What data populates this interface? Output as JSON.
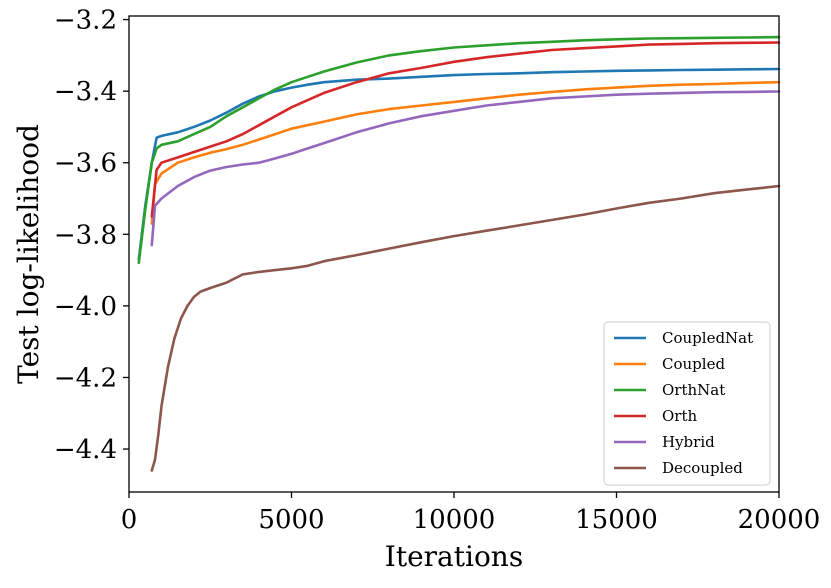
{
  "chart_data": {
    "type": "line",
    "title": "",
    "xlabel": "Iterations",
    "ylabel": "Test log-likelihood",
    "xlim": [
      0,
      20000
    ],
    "ylim": [
      -4.52,
      -3.19
    ],
    "xticks": [
      0,
      5000,
      10000,
      15000,
      20000
    ],
    "xtick_labels": [
      "0",
      "5000",
      "10000",
      "15000",
      "20000"
    ],
    "yticks": [
      -3.2,
      -3.4,
      -3.6,
      -3.8,
      -4.0,
      -4.2,
      -4.4
    ],
    "ytick_labels": [
      "−3.2",
      "−3.4",
      "−3.6",
      "−3.8",
      "−4.0",
      "−4.2",
      "−4.4"
    ],
    "grid": false,
    "legend_position": "lower-right",
    "series": [
      {
        "name": "CoupledNat",
        "color": "#1f77b4",
        "x": [
          300,
          500,
          700,
          850,
          1000,
          1500,
          2000,
          2500,
          3000,
          3500,
          4000,
          4500,
          5000,
          5500,
          6000,
          7000,
          8000,
          9000,
          10000,
          11000,
          12000,
          13000,
          14000,
          15000,
          16000,
          17000,
          18000,
          19000,
          20000
        ],
        "y": [
          -3.87,
          -3.72,
          -3.6,
          -3.53,
          -3.525,
          -3.515,
          -3.5,
          -3.482,
          -3.46,
          -3.435,
          -3.415,
          -3.4,
          -3.39,
          -3.382,
          -3.375,
          -3.368,
          -3.365,
          -3.36,
          -3.355,
          -3.352,
          -3.35,
          -3.347,
          -3.345,
          -3.343,
          -3.342,
          -3.341,
          -3.34,
          -3.339,
          -3.338
        ]
      },
      {
        "name": "Coupled",
        "color": "#ff7f0e",
        "x": [
          700,
          800,
          1000,
          1500,
          2000,
          2500,
          3000,
          3500,
          4000,
          4500,
          5000,
          6000,
          7000,
          8000,
          9000,
          10000,
          11000,
          12000,
          13000,
          14000,
          15000,
          16000,
          17000,
          18000,
          19000,
          20000
        ],
        "y": [
          -3.77,
          -3.66,
          -3.63,
          -3.6,
          -3.585,
          -3.572,
          -3.562,
          -3.55,
          -3.535,
          -3.52,
          -3.505,
          -3.485,
          -3.465,
          -3.45,
          -3.44,
          -3.43,
          -3.42,
          -3.41,
          -3.402,
          -3.395,
          -3.39,
          -3.385,
          -3.382,
          -3.38,
          -3.377,
          -3.375
        ]
      },
      {
        "name": "OrthNat",
        "color": "#2ca02c",
        "x": [
          300,
          500,
          700,
          850,
          1000,
          1500,
          2000,
          2500,
          3000,
          3500,
          4000,
          4500,
          5000,
          5500,
          6000,
          7000,
          8000,
          9000,
          10000,
          11000,
          12000,
          13000,
          14000,
          15000,
          16000,
          17000,
          18000,
          19000,
          20000
        ],
        "y": [
          -3.88,
          -3.73,
          -3.6,
          -3.56,
          -3.55,
          -3.54,
          -3.52,
          -3.5,
          -3.47,
          -3.445,
          -3.42,
          -3.395,
          -3.375,
          -3.36,
          -3.345,
          -3.32,
          -3.3,
          -3.288,
          -3.278,
          -3.272,
          -3.266,
          -3.262,
          -3.258,
          -3.255,
          -3.253,
          -3.252,
          -3.251,
          -3.25,
          -3.249
        ]
      },
      {
        "name": "Orth",
        "color": "#d62728",
        "x": [
          700,
          850,
          1000,
          1500,
          2000,
          2500,
          3000,
          3500,
          4000,
          4500,
          5000,
          5500,
          6000,
          7000,
          8000,
          9000,
          10000,
          11000,
          12000,
          13000,
          14000,
          15000,
          16000,
          17000,
          18000,
          19000,
          20000
        ],
        "y": [
          -3.75,
          -3.62,
          -3.6,
          -3.585,
          -3.57,
          -3.555,
          -3.54,
          -3.52,
          -3.495,
          -3.47,
          -3.445,
          -3.425,
          -3.405,
          -3.375,
          -3.35,
          -3.335,
          -3.318,
          -3.305,
          -3.295,
          -3.285,
          -3.28,
          -3.275,
          -3.27,
          -3.268,
          -3.266,
          -3.265,
          -3.264
        ]
      },
      {
        "name": "Hybrid",
        "color": "#9467bd",
        "x": [
          700,
          800,
          1000,
          1500,
          2000,
          2500,
          3000,
          3500,
          4000,
          4500,
          5000,
          5500,
          6000,
          7000,
          8000,
          9000,
          10000,
          11000,
          12000,
          13000,
          14000,
          15000,
          16000,
          17000,
          18000,
          19000,
          20000
        ],
        "y": [
          -3.83,
          -3.72,
          -3.7,
          -3.665,
          -3.64,
          -3.622,
          -3.612,
          -3.605,
          -3.6,
          -3.588,
          -3.575,
          -3.56,
          -3.545,
          -3.515,
          -3.49,
          -3.47,
          -3.455,
          -3.44,
          -3.43,
          -3.42,
          -3.415,
          -3.41,
          -3.407,
          -3.405,
          -3.403,
          -3.402,
          -3.401
        ]
      },
      {
        "name": "Decoupled",
        "color": "#8c564b",
        "x": [
          700,
          800,
          900,
          1000,
          1200,
          1400,
          1600,
          1800,
          2000,
          2200,
          2500,
          3000,
          3500,
          4000,
          4500,
          5000,
          5500,
          6000,
          7000,
          8000,
          9000,
          10000,
          11000,
          12000,
          13000,
          14000,
          15000,
          16000,
          17000,
          18000,
          19000,
          20000
        ],
        "y": [
          -4.46,
          -4.43,
          -4.36,
          -4.28,
          -4.17,
          -4.09,
          -4.035,
          -4.0,
          -3.975,
          -3.96,
          -3.95,
          -3.935,
          -3.912,
          -3.905,
          -3.9,
          -3.895,
          -3.888,
          -3.875,
          -3.858,
          -3.84,
          -3.822,
          -3.805,
          -3.79,
          -3.775,
          -3.76,
          -3.745,
          -3.728,
          -3.712,
          -3.7,
          -3.685,
          -3.675,
          -3.665
        ]
      }
    ]
  }
}
